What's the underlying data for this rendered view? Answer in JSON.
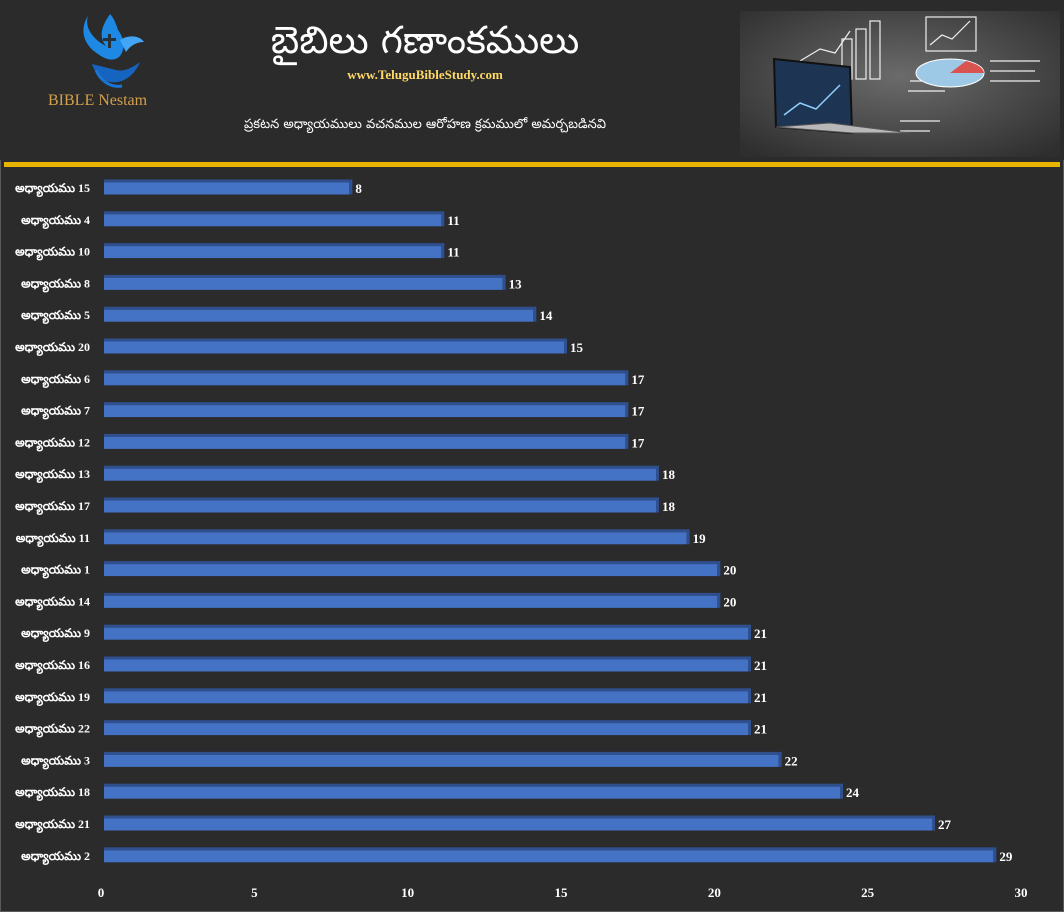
{
  "header": {
    "title": "బైబిలు గణాంకములు",
    "site": "www.TeluguBibleStudy.com",
    "subtitle": "ప్రకటన అధ్యాయములు వచనముల ఆరోహణ క్రమములో అమర్చబడినవి",
    "logo_text": "BIBLE Nestam"
  },
  "colors": {
    "background": "#2b2b2b",
    "bar": "#4472c4",
    "bar_top": "#2f4f8f",
    "accent_line": "#e8b400",
    "site_text": "#ffd966"
  },
  "chart_data": {
    "type": "bar",
    "orientation": "horizontal",
    "title": "",
    "xlabel": "",
    "ylabel": "",
    "xlim": [
      0,
      30
    ],
    "ticks": [
      0,
      5,
      10,
      15,
      20,
      25,
      30
    ],
    "grid": false,
    "categories": [
      "అధ్యాయము 15",
      "అధ్యాయము 4",
      "అధ్యాయము 10",
      "అధ్యాయము 8",
      "అధ్యాయము 5",
      "అధ్యాయము 20",
      "అధ్యాయము 6",
      "అధ్యాయము 7",
      "అధ్యాయము 12",
      "అధ్యాయము 13",
      "అధ్యాయము 17",
      "అధ్యాయము 11",
      "అధ్యాయము 1",
      "అధ్యాయము 14",
      "అధ్యాయము 9",
      "అధ్యాయము 16",
      "అధ్యాయము 19",
      "అధ్యాయము 22",
      "అధ్యాయము 3",
      "అధ్యాయము 18",
      "అధ్యాయము 21",
      "అధ్యాయము 2"
    ],
    "values": [
      8,
      11,
      11,
      13,
      14,
      15,
      17,
      17,
      17,
      18,
      18,
      19,
      20,
      20,
      21,
      21,
      21,
      21,
      22,
      24,
      27,
      29
    ]
  }
}
